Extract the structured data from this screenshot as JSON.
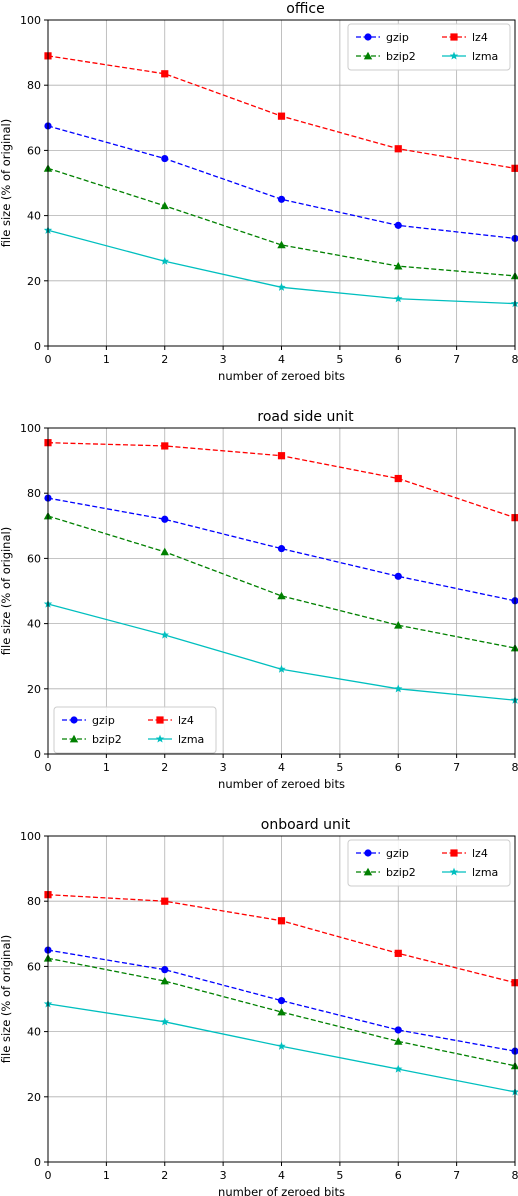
{
  "chart_data": [
    {
      "type": "line",
      "title": "office",
      "xlabel": "number of zeroed bits",
      "ylabel": "file size (% of original)",
      "xlim": [
        0,
        8
      ],
      "ylim": [
        0,
        100
      ],
      "xticks": [
        0,
        1,
        2,
        3,
        4,
        5,
        6,
        7,
        8
      ],
      "yticks": [
        0,
        20,
        40,
        60,
        80,
        100
      ],
      "grid": true,
      "legend": "top-right",
      "x": [
        0,
        2,
        4,
        6,
        8
      ],
      "series": [
        {
          "name": "gzip",
          "values": [
            67.5,
            57.5,
            45,
            37,
            33
          ],
          "color": "#0000ff",
          "marker": "circle"
        },
        {
          "name": "bzip2",
          "values": [
            54.5,
            43,
            31,
            24.5,
            21.5
          ],
          "color": "#008000",
          "marker": "triangle"
        },
        {
          "name": "lz4",
          "values": [
            89,
            83.5,
            70.5,
            60.5,
            54.5
          ],
          "color": "#ff0000",
          "marker": "square"
        },
        {
          "name": "lzma",
          "values": [
            35.5,
            26,
            18,
            14.5,
            13
          ],
          "color": "#00bfbf",
          "marker": "star"
        }
      ]
    },
    {
      "type": "line",
      "title": "road side unit",
      "xlabel": "number of zeroed bits",
      "ylabel": "file size (% of original)",
      "xlim": [
        0,
        8
      ],
      "ylim": [
        0,
        100
      ],
      "xticks": [
        0,
        1,
        2,
        3,
        4,
        5,
        6,
        7,
        8
      ],
      "yticks": [
        0,
        20,
        40,
        60,
        80,
        100
      ],
      "grid": true,
      "legend": "bottom-left",
      "x": [
        0,
        2,
        4,
        6,
        8
      ],
      "series": [
        {
          "name": "gzip",
          "values": [
            78.5,
            72,
            63,
            54.5,
            47
          ],
          "color": "#0000ff",
          "marker": "circle"
        },
        {
          "name": "bzip2",
          "values": [
            73,
            62,
            48.5,
            39.5,
            32.5
          ],
          "color": "#008000",
          "marker": "triangle"
        },
        {
          "name": "lz4",
          "values": [
            95.5,
            94.5,
            91.5,
            84.5,
            72.5
          ],
          "color": "#ff0000",
          "marker": "square"
        },
        {
          "name": "lzma",
          "values": [
            46,
            36.5,
            26,
            20,
            16.5
          ],
          "color": "#00bfbf",
          "marker": "star"
        }
      ]
    },
    {
      "type": "line",
      "title": "onboard unit",
      "xlabel": "number of zeroed bits",
      "ylabel": "file size (% of original)",
      "xlim": [
        0,
        8
      ],
      "ylim": [
        0,
        100
      ],
      "xticks": [
        0,
        1,
        2,
        3,
        4,
        5,
        6,
        7,
        8
      ],
      "yticks": [
        0,
        20,
        40,
        60,
        80,
        100
      ],
      "grid": true,
      "legend": "top-right",
      "x": [
        0,
        2,
        4,
        6,
        8
      ],
      "series": [
        {
          "name": "gzip",
          "values": [
            65,
            59,
            49.5,
            40.5,
            34
          ],
          "color": "#0000ff",
          "marker": "circle"
        },
        {
          "name": "bzip2",
          "values": [
            62.5,
            55.5,
            46,
            37,
            29.5
          ],
          "color": "#008000",
          "marker": "triangle"
        },
        {
          "name": "lz4",
          "values": [
            82,
            80,
            74,
            64,
            55
          ],
          "color": "#ff0000",
          "marker": "square"
        },
        {
          "name": "lzma",
          "values": [
            48.5,
            43,
            35.5,
            28.5,
            21.5
          ],
          "color": "#00bfbf",
          "marker": "star"
        }
      ]
    }
  ]
}
